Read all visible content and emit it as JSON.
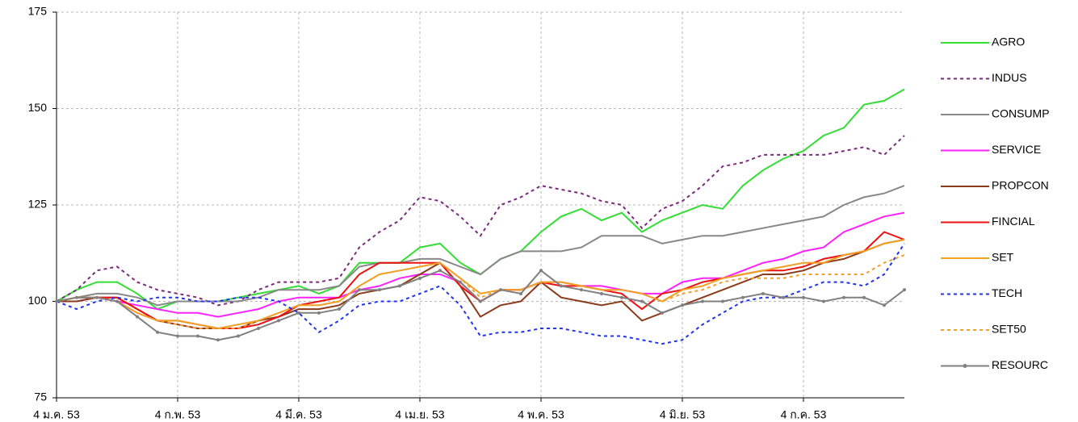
{
  "chart_data": {
    "type": "line",
    "categories": [
      "4 ม.ค. 53",
      null,
      null,
      null,
      null,
      null,
      "4 ก.พ. 53",
      null,
      null,
      null,
      null,
      null,
      "4 มี.ค. 53",
      null,
      null,
      null,
      null,
      null,
      "4 เม.ย. 53",
      null,
      null,
      null,
      null,
      null,
      "4 พ.ค. 53",
      null,
      null,
      null,
      null,
      null,
      null,
      "4 มิ.ย. 53",
      null,
      null,
      null,
      null,
      null,
      "4 ก.ค. 53",
      null,
      null,
      null,
      null,
      null
    ],
    "ylim": [
      75,
      175
    ],
    "yticks": [
      75,
      100,
      125,
      150,
      175
    ],
    "grid": true,
    "legend": "right",
    "series": [
      {
        "name": "AGRO",
        "color": "#33dd33",
        "values": [
          100,
          103,
          105,
          105,
          102,
          98,
          100,
          100,
          100,
          101,
          102,
          103,
          104,
          102,
          104,
          110,
          110,
          110,
          114,
          115,
          110,
          107,
          111,
          113,
          118,
          122,
          124,
          121,
          123,
          118,
          121,
          123,
          125,
          124,
          130,
          134,
          137,
          139,
          143,
          145,
          151,
          152,
          155
        ]
      },
      {
        "name": "INDUS",
        "color": "#7b2a7b",
        "dash": true,
        "values": [
          100,
          103,
          108,
          109,
          105,
          103,
          102,
          101,
          99,
          100,
          103,
          105,
          105,
          105,
          106,
          114,
          118,
          121,
          127,
          126,
          122,
          117,
          125,
          127,
          130,
          129,
          128,
          126,
          125,
          119,
          124,
          126,
          130,
          135,
          136,
          138,
          138,
          138,
          138,
          139,
          140,
          138,
          143
        ]
      },
      {
        "name": "CONSUMP",
        "color": "#888888",
        "values": [
          100,
          101,
          102,
          102,
          101,
          99,
          100,
          100,
          100,
          100,
          101,
          103,
          103,
          103,
          104,
          109,
          110,
          110,
          111,
          111,
          109,
          107,
          111,
          113,
          113,
          113,
          114,
          117,
          117,
          117,
          115,
          116,
          117,
          117,
          118,
          119,
          120,
          121,
          122,
          125,
          127,
          128,
          130
        ]
      },
      {
        "name": "SERVICE",
        "color": "#ff22ff",
        "values": [
          100,
          100,
          101,
          100,
          99,
          98,
          97,
          97,
          96,
          97,
          98,
          100,
          101,
          101,
          101,
          103,
          104,
          106,
          107,
          107,
          105,
          100,
          103,
          103,
          105,
          105,
          104,
          104,
          103,
          102,
          102,
          105,
          106,
          106,
          108,
          110,
          111,
          113,
          114,
          118,
          120,
          122,
          123
        ]
      },
      {
        "name": "PROPCON",
        "color": "#8b3a1a",
        "values": [
          100,
          100,
          101,
          101,
          98,
          95,
          94,
          93,
          93,
          93,
          95,
          96,
          98,
          98,
          99,
          102,
          103,
          104,
          107,
          110,
          104,
          96,
          99,
          100,
          105,
          101,
          100,
          99,
          100,
          95,
          97,
          99,
          101,
          103,
          105,
          107,
          107,
          108,
          110,
          111,
          113,
          115,
          116
        ]
      },
      {
        "name": "FINCIAL",
        "color": "#ee1111",
        "values": [
          100,
          101,
          101,
          101,
          98,
          95,
          95,
          94,
          93,
          93,
          94,
          96,
          99,
          100,
          101,
          107,
          110,
          110,
          110,
          110,
          104,
          100,
          103,
          103,
          105,
          104,
          104,
          103,
          102,
          98,
          102,
          103,
          105,
          106,
          107,
          108,
          108,
          109,
          111,
          112,
          113,
          118,
          116
        ]
      },
      {
        "name": "SET",
        "color": "#f0a020",
        "values": [
          100,
          101,
          101,
          100,
          97,
          95,
          95,
          94,
          93,
          94,
          95,
          97,
          99,
          99,
          100,
          104,
          107,
          108,
          109,
          110,
          106,
          102,
          103,
          103,
          105,
          105,
          104,
          103,
          103,
          102,
          100,
          103,
          104,
          106,
          107,
          108,
          109,
          110,
          110,
          112,
          113,
          115,
          116
        ]
      },
      {
        "name": "TECH",
        "color": "#2233ee",
        "dash": true,
        "values": [
          100,
          98,
          100,
          101,
          100,
          101,
          101,
          100,
          100,
          101,
          101,
          100,
          97,
          92,
          95,
          99,
          100,
          100,
          102,
          104,
          99,
          91,
          92,
          92,
          93,
          93,
          92,
          91,
          91,
          90,
          89,
          90,
          94,
          97,
          100,
          101,
          101,
          103,
          105,
          105,
          104,
          107,
          115
        ]
      },
      {
        "name": "SET50",
        "color": "#f0a030",
        "dash": true,
        "values": [
          100,
          101,
          101,
          100,
          97,
          95,
          94,
          93,
          93,
          93,
          95,
          97,
          99,
          99,
          100,
          104,
          107,
          108,
          109,
          110,
          106,
          101,
          103,
          103,
          105,
          105,
          104,
          103,
          103,
          102,
          100,
          102,
          103,
          105,
          106,
          106,
          106,
          107,
          107,
          107,
          107,
          110,
          112
        ]
      },
      {
        "name": "RESOURC",
        "color": "#808080",
        "marker": true,
        "values": [
          100,
          101,
          101,
          100,
          96,
          92,
          91,
          91,
          90,
          91,
          93,
          95,
          97,
          97,
          98,
          103,
          103,
          104,
          106,
          108,
          105,
          100,
          103,
          102,
          108,
          104,
          103,
          102,
          101,
          100,
          97,
          99,
          100,
          100,
          101,
          102,
          101,
          101,
          100,
          101,
          101,
          99,
          103
        ]
      }
    ]
  }
}
